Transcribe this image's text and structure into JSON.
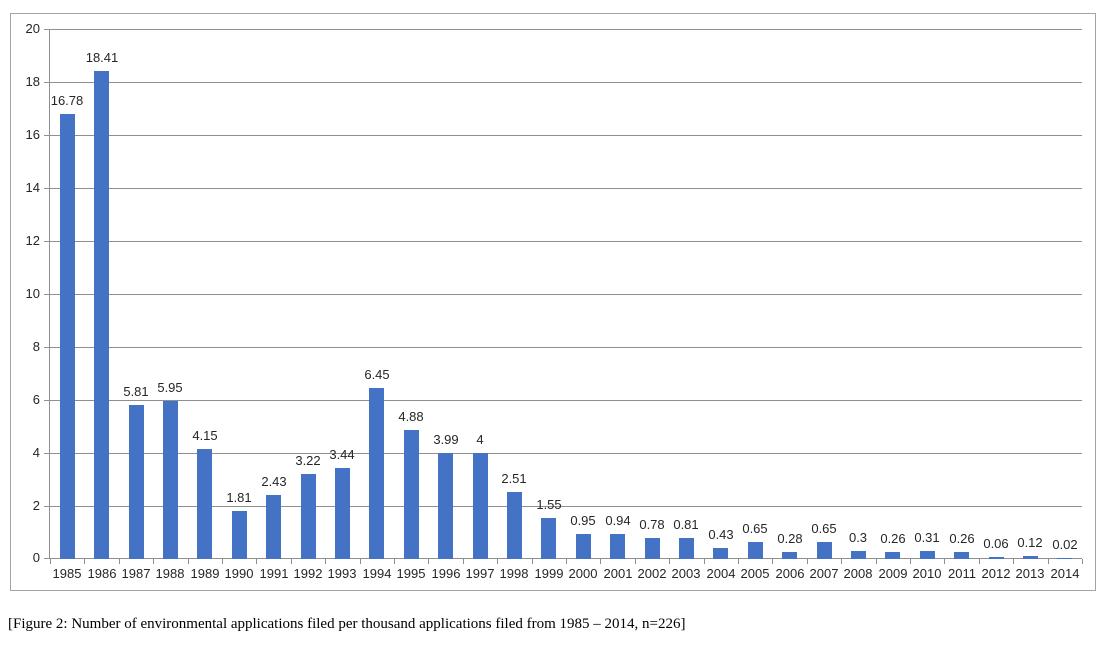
{
  "figure": {
    "caption": "[Figure 2: Number of environmental applications filed per thousand applications filed from 1985 – 2014, n=226]"
  },
  "chart_data": {
    "type": "bar",
    "title": "",
    "xlabel": "",
    "ylabel": "",
    "categories": [
      "1985",
      "1986",
      "1987",
      "1988",
      "1989",
      "1990",
      "1991",
      "1992",
      "1993",
      "1994",
      "1995",
      "1996",
      "1997",
      "1998",
      "1999",
      "2000",
      "2001",
      "2002",
      "2003",
      "2004",
      "2005",
      "2006",
      "2007",
      "2008",
      "2009",
      "2010",
      "2011",
      "2012",
      "2013",
      "2014"
    ],
    "values": [
      16.78,
      18.41,
      5.81,
      5.95,
      4.15,
      1.81,
      2.43,
      3.22,
      3.44,
      6.45,
      4.88,
      3.99,
      4,
      2.51,
      1.55,
      0.95,
      0.94,
      0.78,
      0.81,
      0.43,
      0.65,
      0.28,
      0.65,
      0.3,
      0.26,
      0.31,
      0.26,
      0.06,
      0.12,
      0.02
    ],
    "data_labels": [
      "16.78",
      "18.41",
      "5.81",
      "5.95",
      "4.15",
      "1.81",
      "2.43",
      "3.22",
      "3.44",
      "6.45",
      "4.88",
      "3.99",
      "4",
      "2.51",
      "1.55",
      "0.95",
      "0.94",
      "0.78",
      "0.81",
      "0.43",
      "0.65",
      "0.28",
      "0.65",
      "0.3",
      "0.26",
      "0.31",
      "0.26",
      "0.06",
      "0.12",
      "0.02"
    ],
    "ylim": [
      0,
      20
    ],
    "yticks": [
      0,
      2,
      4,
      6,
      8,
      10,
      12,
      14,
      16,
      18,
      20
    ],
    "grid": true,
    "legend": "none",
    "colors": {
      "bar": "#4472C4",
      "gridline": "#8F8F8F",
      "axis": "#8F8F8F",
      "tick_label": "#262626",
      "frame_border": "#A3A3A3",
      "background": "#FFFFFF"
    }
  }
}
